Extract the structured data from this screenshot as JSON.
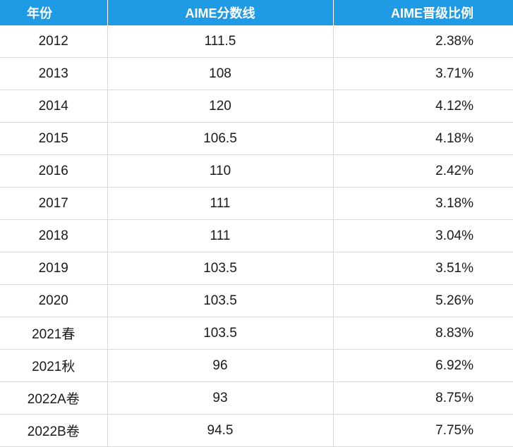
{
  "table": {
    "headers": {
      "year": "年份",
      "score": "AIME分数线",
      "ratio": "AIME晋级比例"
    },
    "rows": [
      {
        "year": "2012",
        "score": "111.5",
        "ratio": "2.38%"
      },
      {
        "year": "2013",
        "score": "108",
        "ratio": "3.71%"
      },
      {
        "year": "2014",
        "score": "120",
        "ratio": "4.12%"
      },
      {
        "year": "2015",
        "score": "106.5",
        "ratio": "4.18%"
      },
      {
        "year": "2016",
        "score": "110",
        "ratio": "2.42%"
      },
      {
        "year": "2017",
        "score": "111",
        "ratio": "3.18%"
      },
      {
        "year": "2018",
        "score": "111",
        "ratio": "3.04%"
      },
      {
        "year": "2019",
        "score": "103.5",
        "ratio": "3.51%"
      },
      {
        "year": "2020",
        "score": "103.5",
        "ratio": "5.26%"
      },
      {
        "year": "2021春",
        "score": "103.5",
        "ratio": "8.83%"
      },
      {
        "year": "2021秋",
        "score": "96",
        "ratio": "6.92%"
      },
      {
        "year": "2022A卷",
        "score": "93",
        "ratio": "8.75%"
      },
      {
        "year": "2022B卷",
        "score": "94.5",
        "ratio": "7.75%"
      }
    ]
  }
}
